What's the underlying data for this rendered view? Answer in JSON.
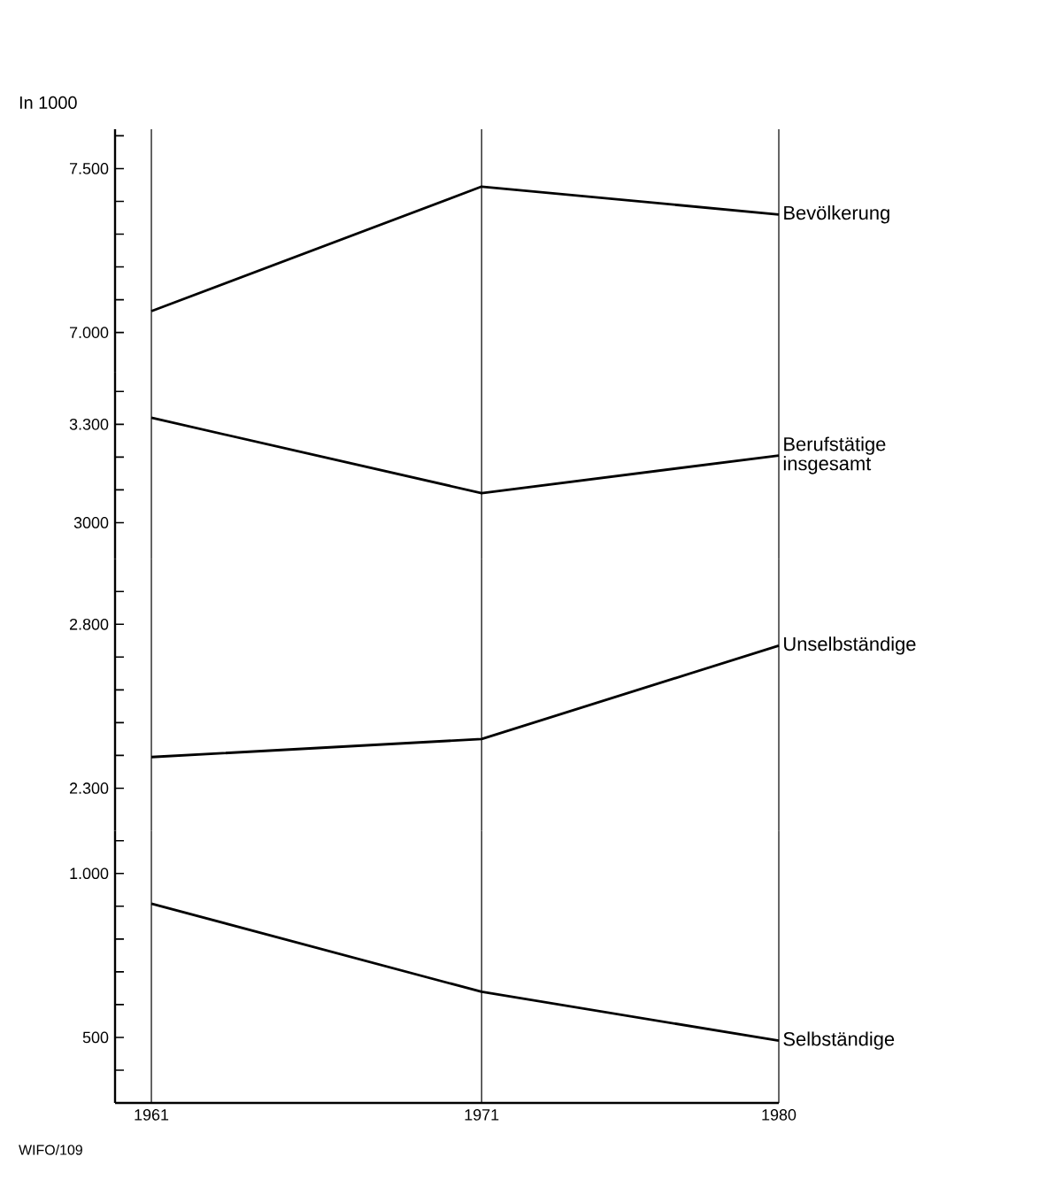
{
  "chart_data": [
    {
      "type": "line",
      "ylabel": "In 1000",
      "x": [
        1961,
        1971,
        1980
      ],
      "xlim": [
        1959.9,
        1980
      ],
      "xticks": [
        1961,
        1971,
        1980
      ],
      "ylim": [
        6880,
        7620
      ],
      "yticks": [
        {
          "value": 7000,
          "label": "7.000"
        },
        {
          "value": 7100,
          "label": null
        },
        {
          "value": 7200,
          "label": null
        },
        {
          "value": 7300,
          "label": null
        },
        {
          "value": 7400,
          "label": null
        },
        {
          "value": 7500,
          "label": "7.500"
        },
        {
          "value": 7600,
          "label": null
        }
      ],
      "grid": "x",
      "tick_labels": "y",
      "series": [
        {
          "name": "Bevölkerung",
          "color": "#000000",
          "values": [
            7065,
            7445,
            7360
          ]
        }
      ]
    },
    {
      "type": "line",
      "x": [
        1961,
        1971,
        1980
      ],
      "xlim": [
        1959.9,
        1980
      ],
      "xticks": [
        1961,
        1971,
        1980
      ],
      "ylim": [
        2890,
        3460
      ],
      "yticks": [
        3000,
        {
          "value": 3100,
          "label": null
        },
        {
          "value": 3200,
          "label": null
        },
        {
          "value": 3300,
          "label": "3.300"
        },
        {
          "value": 3400,
          "label": null
        }
      ],
      "grid": "x",
      "tick_labels": "y",
      "series": [
        {
          "name": "Berufstätige insgesamt",
          "color": "#000000",
          "values": [
            3320,
            3090,
            3205
          ]
        }
      ]
    },
    {
      "type": "line",
      "x": [
        1961,
        1971,
        1980
      ],
      "xlim": [
        1959.9,
        1980
      ],
      "xticks": [
        1961,
        1971,
        1980
      ],
      "ylim": [
        2170,
        3000
      ],
      "yticks": [
        {
          "value": 2300,
          "label": "2.300"
        },
        {
          "value": 2400,
          "label": null
        },
        {
          "value": 2500,
          "label": null
        },
        {
          "value": 2600,
          "label": null
        },
        {
          "value": 2700,
          "label": null
        },
        {
          "value": 2800,
          "label": "2.800"
        },
        {
          "value": 2900,
          "label": null
        }
      ],
      "grid": "x",
      "tick_labels": "y",
      "series": [
        {
          "name": "Unselbständige",
          "color": "#000000",
          "values": [
            2395,
            2450,
            2735
          ]
        }
      ]
    },
    {
      "type": "line",
      "x": [
        1961,
        1971,
        1980
      ],
      "xlim": [
        1959.9,
        1980
      ],
      "xticks": [
        1961,
        1971,
        1980
      ],
      "ylim": [
        300,
        1130
      ],
      "yticks": [
        {
          "value": 400,
          "label": null
        },
        500,
        {
          "value": 600,
          "label": null
        },
        {
          "value": 700,
          "label": null
        },
        {
          "value": 800,
          "label": null
        },
        {
          "value": 900,
          "label": null
        },
        {
          "value": 1000,
          "label": "1.000"
        },
        {
          "value": 1100,
          "label": null
        }
      ],
      "grid": "x",
      "annotations": [
        "WIFO/109"
      ],
      "series": [
        {
          "name": "Selbständige",
          "color": "#000000",
          "values": [
            908,
            639,
            490
          ]
        }
      ]
    }
  ]
}
